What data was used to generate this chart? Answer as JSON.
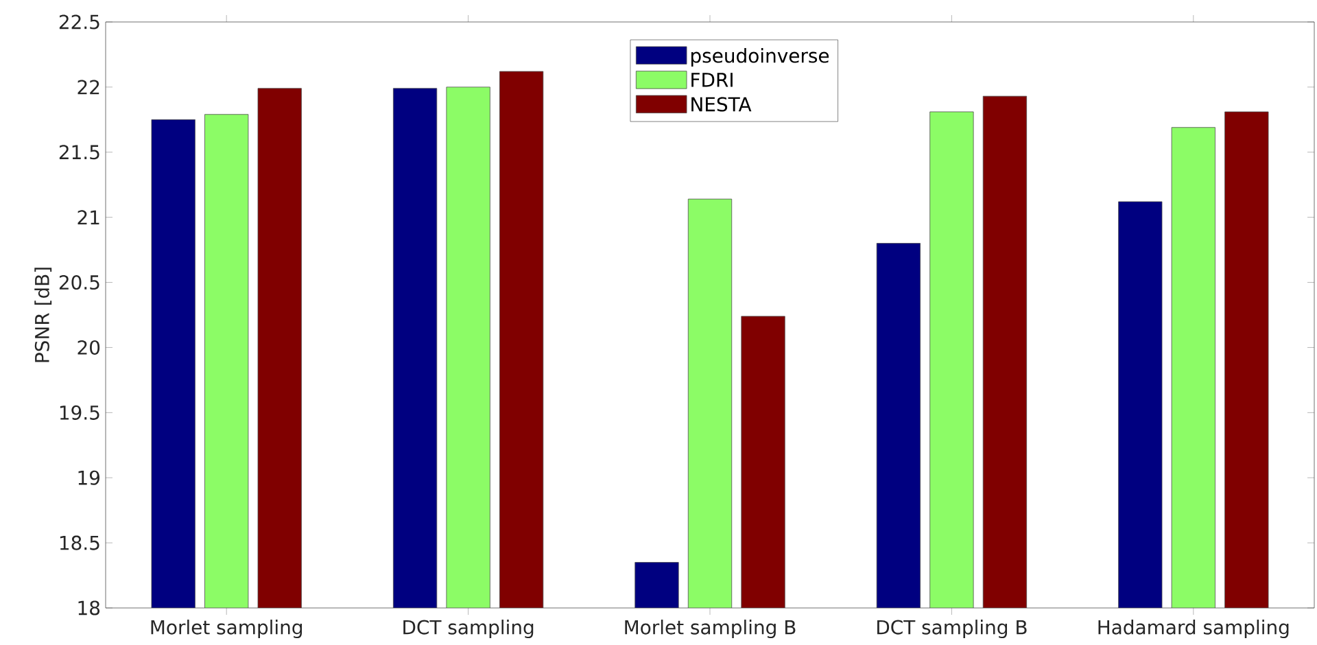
{
  "chart_data": {
    "type": "bar",
    "ylabel": "PSNR [dB]",
    "categories": [
      "Morlet sampling",
      "DCT sampling",
      "Morlet sampling B",
      "DCT sampling B",
      "Hadamard sampling"
    ],
    "series": [
      {
        "name": "pseudoinverse",
        "color": "#000080",
        "values": [
          21.75,
          21.99,
          18.35,
          20.8,
          21.12
        ]
      },
      {
        "name": "FDRI",
        "color": "#8cfc66",
        "values": [
          21.79,
          22.0,
          21.14,
          21.81,
          21.69
        ]
      },
      {
        "name": "NESTA",
        "color": "#800000",
        "values": [
          21.99,
          22.12,
          20.24,
          21.93,
          21.81
        ]
      }
    ],
    "ylim": [
      18,
      22.5
    ],
    "yticks": [
      18,
      18.5,
      19,
      19.5,
      20,
      20.5,
      21,
      21.5,
      22,
      22.5
    ],
    "legend": "top"
  }
}
